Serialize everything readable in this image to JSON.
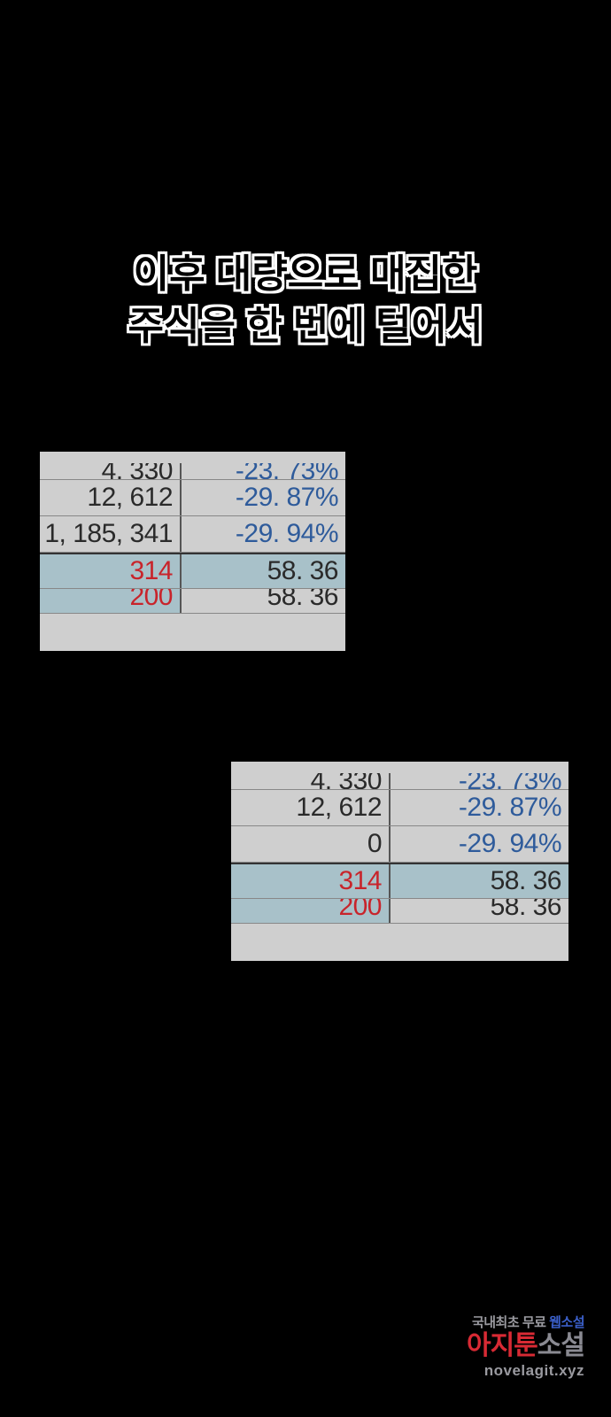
{
  "caption": {
    "line1": "이후 대량으로 매집한",
    "line2": "주식을 한 번에 털어서"
  },
  "colors": {
    "bg": "#000000",
    "panel_bg": "#cfcfcf",
    "highlight_bg": "#a8c1c9",
    "text_dark": "#2a2a2a",
    "text_blue": "#2e5b9b",
    "text_red": "#c8242b",
    "border": "#888888",
    "border_heavy": "#333333",
    "wm_gray": "#9a9aa0",
    "wm_red": "#d82a34",
    "wm_blue": "#3b5fc9"
  },
  "panel_a": {
    "rows": [
      {
        "left": "4, 330",
        "right": "-23. 73%",
        "left_color": "text_dark",
        "right_color": "text_blue",
        "cut": "top"
      },
      {
        "left": "12, 612",
        "right": "-29. 87%",
        "left_color": "text_dark",
        "right_color": "text_blue"
      },
      {
        "left": "1, 185, 341",
        "right": "-29. 94%",
        "left_color": "text_dark",
        "right_color": "text_blue"
      },
      {
        "left": "314",
        "right": "58. 36",
        "left_color": "text_red",
        "right_color": "text_dark",
        "highlight_left": true,
        "highlight_right": true,
        "divider_top": true
      },
      {
        "left": "200",
        "right": "58. 36",
        "left_color": "text_red",
        "right_color": "text_dark",
        "highlight_left": true,
        "cut": "bottom"
      }
    ]
  },
  "panel_b": {
    "rows": [
      {
        "left": "4, 330",
        "right": "-23. 73%",
        "left_color": "text_dark",
        "right_color": "text_blue",
        "cut": "top"
      },
      {
        "left": "12, 612",
        "right": "-29. 87%",
        "left_color": "text_dark",
        "right_color": "text_blue"
      },
      {
        "left": "0",
        "right": "-29. 94%",
        "left_color": "text_dark",
        "right_color": "text_blue"
      },
      {
        "left": "314",
        "right": "58. 36",
        "left_color": "text_red",
        "right_color": "text_dark",
        "highlight_left": true,
        "highlight_right": true,
        "divider_top": true
      },
      {
        "left": "200",
        "right": "58. 36",
        "left_color": "text_red",
        "right_color": "text_dark",
        "highlight_left": true,
        "cut": "bottom"
      }
    ]
  },
  "watermark": {
    "top_gray": "국내최초 무료",
    "top_blue": "웹소설",
    "main_red": "아지툰",
    "main_gray": "소설",
    "url": "novelagit.xyz"
  }
}
